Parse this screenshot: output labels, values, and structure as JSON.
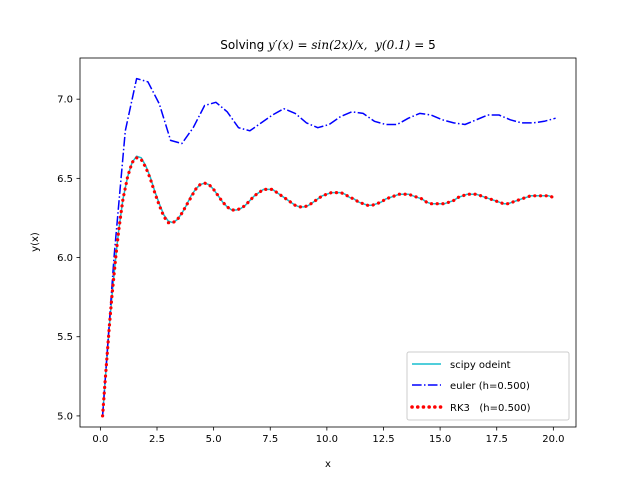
{
  "chart_data": {
    "type": "line",
    "title": {
      "prefix": "Solving ",
      "lhs": "y′(x)",
      "rhs": "sin(2x)/x,",
      "init_lhs": "y(0.1)",
      "init_rhs": "5"
    },
    "xlabel": "x",
    "ylabel": "y(x)",
    "xlim": [
      -0.9,
      21.0
    ],
    "ylim": [
      4.93,
      7.26
    ],
    "x_ticks": [
      {
        "value": 0.0,
        "label": "0.0"
      },
      {
        "value": 2.5,
        "label": "2.5"
      },
      {
        "value": 5.0,
        "label": "5.0"
      },
      {
        "value": 7.5,
        "label": "7.5"
      },
      {
        "value": 10.0,
        "label": "10.0"
      },
      {
        "value": 12.5,
        "label": "12.5"
      },
      {
        "value": 15.0,
        "label": "15.0"
      },
      {
        "value": 17.5,
        "label": "17.5"
      },
      {
        "value": 20.0,
        "label": "20.0"
      }
    ],
    "y_ticks": [
      {
        "value": 5.0,
        "label": "5.0"
      },
      {
        "value": 5.5,
        "label": "5.5"
      },
      {
        "value": 6.0,
        "label": "6.0"
      },
      {
        "value": 6.5,
        "label": "6.5"
      },
      {
        "value": 7.0,
        "label": "7.0"
      }
    ],
    "grid": false,
    "legend_position": "lower-right",
    "series": [
      {
        "name": "scipy odeint",
        "color": "#17becf",
        "style": "solid",
        "x": [
          0.1,
          0.2,
          0.3,
          0.4,
          0.5,
          0.6,
          0.7,
          0.8,
          0.9,
          1.0,
          1.2,
          1.4,
          1.6,
          1.8,
          2.0,
          2.2,
          2.4,
          2.6,
          2.8,
          3.0,
          3.2,
          3.4,
          3.6,
          3.8,
          4.0,
          4.2,
          4.4,
          4.6,
          4.8,
          5.0,
          5.2,
          5.4,
          5.6,
          5.8,
          6.0,
          6.2,
          6.4,
          6.6,
          6.8,
          7.0,
          7.2,
          7.4,
          7.6,
          7.8,
          8.0,
          8.2,
          8.4,
          8.6,
          8.8,
          9.0,
          9.2,
          9.4,
          9.6,
          9.8,
          10.0,
          10.2,
          10.4,
          10.6,
          10.8,
          11.0,
          11.2,
          11.4,
          11.6,
          11.8,
          12.0,
          12.2,
          12.4,
          12.6,
          12.8,
          13.0,
          13.2,
          13.4,
          13.6,
          13.8,
          14.0,
          14.2,
          14.4,
          14.6,
          14.8,
          15.0,
          15.2,
          15.4,
          15.6,
          15.8,
          16.0,
          16.2,
          16.4,
          16.6,
          16.8,
          17.0,
          17.2,
          17.4,
          17.6,
          17.8,
          18.0,
          18.2,
          18.4,
          18.6,
          18.8,
          19.0,
          19.2,
          19.4,
          19.6,
          19.8,
          20.0
        ],
        "y": [
          5.0,
          5.2,
          5.39,
          5.57,
          5.74,
          5.89,
          6.03,
          6.16,
          6.27,
          6.37,
          6.51,
          6.6,
          6.64,
          6.63,
          6.58,
          6.51,
          6.42,
          6.34,
          6.27,
          6.23,
          6.22,
          6.24,
          6.28,
          6.33,
          6.39,
          6.43,
          6.46,
          6.47,
          6.46,
          6.43,
          6.39,
          6.35,
          6.32,
          6.3,
          6.3,
          6.31,
          6.33,
          6.36,
          6.39,
          6.41,
          6.43,
          6.43,
          6.43,
          6.41,
          6.39,
          6.37,
          6.35,
          6.33,
          6.32,
          6.32,
          6.33,
          6.35,
          6.37,
          6.39,
          6.4,
          6.41,
          6.41,
          6.41,
          6.4,
          6.38,
          6.37,
          6.35,
          6.34,
          6.33,
          6.33,
          6.34,
          6.35,
          6.37,
          6.38,
          6.39,
          6.4,
          6.4,
          6.4,
          6.39,
          6.38,
          6.37,
          6.35,
          6.34,
          6.34,
          6.34,
          6.34,
          6.35,
          6.36,
          6.38,
          6.39,
          6.4,
          6.4,
          6.4,
          6.39,
          6.38,
          6.37,
          6.36,
          6.35,
          6.34,
          6.34,
          6.35,
          6.36,
          6.37,
          6.38,
          6.39,
          6.39,
          6.39,
          6.39,
          6.39,
          6.38
        ]
      },
      {
        "name": "euler (h=0.500)",
        "color": "#0000ff",
        "style": "dashdot",
        "x": [
          0.1,
          0.6,
          1.1,
          1.6,
          2.1,
          2.6,
          3.1,
          3.6,
          4.1,
          4.6,
          5.1,
          5.6,
          6.1,
          6.6,
          7.1,
          7.6,
          8.1,
          8.6,
          9.1,
          9.6,
          10.1,
          10.6,
          11.1,
          11.6,
          12.1,
          12.6,
          13.1,
          13.6,
          14.1,
          14.6,
          15.1,
          15.6,
          16.1,
          16.6,
          17.1,
          17.6,
          18.1,
          18.6,
          19.1,
          19.6,
          20.1
        ],
        "y": [
          5.0,
          6.0,
          6.8,
          7.13,
          7.11,
          6.97,
          6.74,
          6.72,
          6.82,
          6.96,
          6.98,
          6.92,
          6.82,
          6.8,
          6.85,
          6.9,
          6.94,
          6.91,
          6.85,
          6.82,
          6.84,
          6.89,
          6.92,
          6.91,
          6.86,
          6.84,
          6.84,
          6.88,
          6.91,
          6.9,
          6.87,
          6.85,
          6.84,
          6.87,
          6.9,
          6.9,
          6.87,
          6.85,
          6.85,
          6.86,
          6.88
        ]
      },
      {
        "name": "RK3   (h=0.500)",
        "color": "#ff0000",
        "style": "dotted",
        "x": [
          0.1,
          0.2,
          0.3,
          0.4,
          0.5,
          0.6,
          0.7,
          0.8,
          0.9,
          1.0,
          1.2,
          1.4,
          1.6,
          1.8,
          2.0,
          2.2,
          2.4,
          2.6,
          2.8,
          3.0,
          3.2,
          3.4,
          3.6,
          3.8,
          4.0,
          4.2,
          4.4,
          4.6,
          4.8,
          5.0,
          5.2,
          5.4,
          5.6,
          5.8,
          6.0,
          6.2,
          6.4,
          6.6,
          6.8,
          7.0,
          7.2,
          7.4,
          7.6,
          7.8,
          8.0,
          8.2,
          8.4,
          8.6,
          8.8,
          9.0,
          9.2,
          9.4,
          9.6,
          9.8,
          10.0,
          10.2,
          10.4,
          10.6,
          10.8,
          11.0,
          11.2,
          11.4,
          11.6,
          11.8,
          12.0,
          12.2,
          12.4,
          12.6,
          12.8,
          13.0,
          13.2,
          13.4,
          13.6,
          13.8,
          14.0,
          14.2,
          14.4,
          14.6,
          14.8,
          15.0,
          15.2,
          15.4,
          15.6,
          15.8,
          16.0,
          16.2,
          16.4,
          16.6,
          16.8,
          17.0,
          17.2,
          17.4,
          17.6,
          17.8,
          18.0,
          18.2,
          18.4,
          18.6,
          18.8,
          19.0,
          19.2,
          19.4,
          19.6,
          19.8,
          20.0
        ],
        "y": [
          5.0,
          5.2,
          5.39,
          5.57,
          5.74,
          5.89,
          6.03,
          6.16,
          6.27,
          6.37,
          6.51,
          6.6,
          6.63,
          6.62,
          6.57,
          6.5,
          6.41,
          6.33,
          6.26,
          6.22,
          6.22,
          6.24,
          6.28,
          6.33,
          6.38,
          6.43,
          6.46,
          6.47,
          6.46,
          6.43,
          6.39,
          6.35,
          6.32,
          6.3,
          6.3,
          6.31,
          6.33,
          6.36,
          6.39,
          6.41,
          6.43,
          6.43,
          6.43,
          6.41,
          6.39,
          6.37,
          6.35,
          6.33,
          6.32,
          6.32,
          6.33,
          6.35,
          6.37,
          6.39,
          6.4,
          6.41,
          6.41,
          6.41,
          6.4,
          6.38,
          6.37,
          6.35,
          6.34,
          6.33,
          6.33,
          6.34,
          6.35,
          6.37,
          6.38,
          6.39,
          6.4,
          6.4,
          6.4,
          6.39,
          6.38,
          6.37,
          6.35,
          6.34,
          6.34,
          6.34,
          6.34,
          6.35,
          6.36,
          6.38,
          6.39,
          6.4,
          6.4,
          6.4,
          6.39,
          6.38,
          6.37,
          6.36,
          6.35,
          6.34,
          6.34,
          6.35,
          6.36,
          6.37,
          6.38,
          6.39,
          6.39,
          6.39,
          6.39,
          6.39,
          6.38
        ]
      }
    ]
  }
}
